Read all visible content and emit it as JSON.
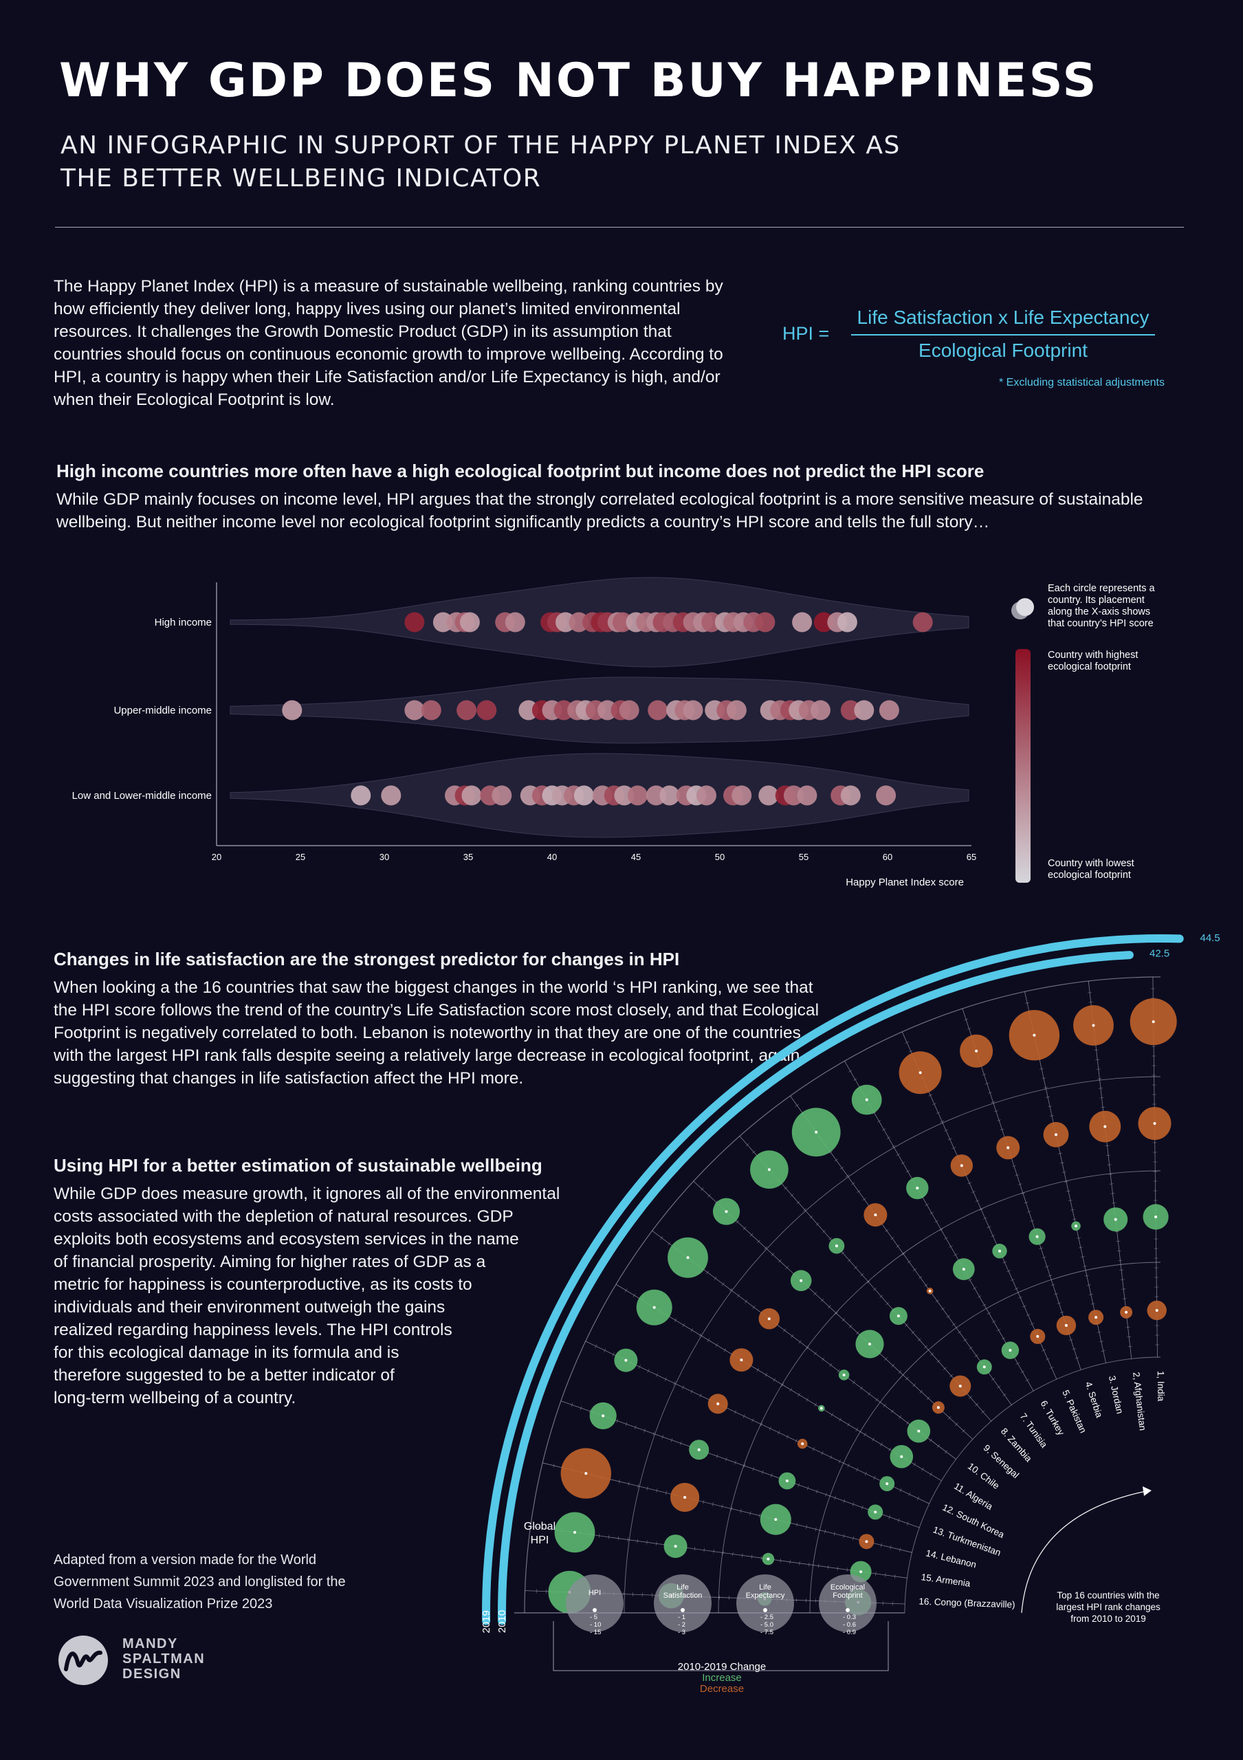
{
  "header": {
    "title": "WHY GDP DOES NOT BUY HAPPINESS",
    "subtitle": "AN INFOGRAPHIC IN SUPPORT OF THE HAPPY PLANET INDEX AS THE BETTER WELLBEING INDICATOR"
  },
  "intro": {
    "text": "The Happy Planet Index (HPI) is a measure of sustainable wellbeing, ranking countries by how efficiently they deliver long, happy lives using our planet’s limited environmental resources. It challenges the Growth Domestic Product (GDP) in its assumption that countries should focus on continuous economic growth to improve wellbeing. According to HPI, a country is happy when their Life Satisfaction and/or Life Expectancy is high, and/or when their Ecological Footprint is low."
  },
  "formula": {
    "lhs": "HPI =",
    "numerator": "Life Satisfaction x Life Expectancy",
    "denominator": "Ecological Footprint",
    "note": "* Excluding statistical adjustments"
  },
  "section1": {
    "heading": "High income countries more often have a high ecological footprint but income does not predict the HPI score",
    "body": "While GDP mainly focuses on income level, HPI argues that the strongly correlated ecological footprint is a more sensitive measure of sustainable wellbeing. But neither income level nor ecological footprint significantly predicts a country’s HPI score and tells the full story…"
  },
  "section2": {
    "heading": "Changes in life satisfaction are the strongest predictor for changes in HPI",
    "body": "When looking a the 16 countries that saw the biggest changes in the world ‘s HPI ranking, we see that the HPI score follows the trend of the country’s Life Satisfaction score most closely, and that Ecological Footprint is negatively correlated to both. Lebanon is noteworthy in that they are one of the countries with the largest HPI rank falls despite seeing a relatively large decrease in ecological footprint, again suggesting that changes in life satisfaction affect the HPI more."
  },
  "section3": {
    "heading": "Using HPI for a better estimation of sustainable wellbeing",
    "lines": [
      "While GDP does measure growth, it ignores all of the environmental",
      "costs associated with the depletion of natural resources. GDP",
      "exploits both ecosystems and ecosystem services in the name",
      "of financial prosperity. Aiming for higher rates of GDP as a",
      "metric for happiness is counterproductive, as its costs to",
      "individuals and their environment outweigh the gains",
      "realized regarding happiness levels. The HPI controls",
      "for this ecological damage in its formula and is",
      "therefore suggested to be a better indicator of",
      "long-term wellbeing of a country."
    ]
  },
  "credit": {
    "text": "Adapted from a version made for the World Government Summit 2023 and longlisted for the World Data Visualization Prize 2023",
    "logo_lines": [
      "MANDY",
      "SPALTMAN",
      "DESIGN"
    ]
  },
  "colors": {
    "background": "#0d0c1f",
    "accent": "#56c8e8",
    "increase": "#5cb870",
    "decrease": "#c0622a",
    "footprint_high": "#8c1024",
    "footprint_low": "#d6d6dc"
  },
  "chart_data": [
    {
      "type": "scatter",
      "subtype": "beeswarm-violin",
      "xlabel": "Happy Planet Index score",
      "xlim": [
        20,
        65
      ],
      "xticks": [
        20,
        25,
        30,
        35,
        40,
        45,
        50,
        55,
        60,
        65
      ],
      "color_encoding": "ecological footprint (dark red = highest, light grey = lowest)",
      "legend": {
        "circle_note": "Each circle represents a country. Its placement along the X-axis shows that country’s HPI score",
        "high_label": "Country with highest ecological footprint",
        "low_label": "Country with lowest ecological footprint"
      },
      "series": [
        {
          "name": "High income",
          "points": [
            {
              "hpi": 31.8,
              "fp": 0.9
            },
            {
              "hpi": 33.5,
              "fp": 0.3
            },
            {
              "hpi": 34.3,
              "fp": 0.4
            },
            {
              "hpi": 34.8,
              "fp": 0.6
            },
            {
              "hpi": 35.1,
              "fp": 0.3
            },
            {
              "hpi": 37.2,
              "fp": 0.6
            },
            {
              "hpi": 37.8,
              "fp": 0.4
            },
            {
              "hpi": 39.9,
              "fp": 0.9
            },
            {
              "hpi": 40.3,
              "fp": 0.8
            },
            {
              "hpi": 40.8,
              "fp": 0.3
            },
            {
              "hpi": 41.6,
              "fp": 0.5
            },
            {
              "hpi": 42.4,
              "fp": 0.7
            },
            {
              "hpi": 42.9,
              "fp": 0.9
            },
            {
              "hpi": 43.3,
              "fp": 0.8
            },
            {
              "hpi": 43.9,
              "fp": 0.4
            },
            {
              "hpi": 44.2,
              "fp": 0.6
            },
            {
              "hpi": 45.0,
              "fp": 0.3
            },
            {
              "hpi": 45.6,
              "fp": 0.5
            },
            {
              "hpi": 46.2,
              "fp": 0.4
            },
            {
              "hpi": 46.6,
              "fp": 0.7
            },
            {
              "hpi": 47.2,
              "fp": 0.6
            },
            {
              "hpi": 47.8,
              "fp": 0.8
            },
            {
              "hpi": 48.4,
              "fp": 0.5
            },
            {
              "hpi": 49.0,
              "fp": 0.4
            },
            {
              "hpi": 49.5,
              "fp": 0.6
            },
            {
              "hpi": 50.3,
              "fp": 0.3
            },
            {
              "hpi": 50.8,
              "fp": 0.5
            },
            {
              "hpi": 51.4,
              "fp": 0.4
            },
            {
              "hpi": 52.0,
              "fp": 0.6
            },
            {
              "hpi": 52.7,
              "fp": 0.7
            },
            {
              "hpi": 54.9,
              "fp": 0.3
            },
            {
              "hpi": 56.2,
              "fp": 0.95
            },
            {
              "hpi": 57.0,
              "fp": 0.4
            },
            {
              "hpi": 57.6,
              "fp": 0.2
            },
            {
              "hpi": 62.1,
              "fp": 0.7
            }
          ]
        },
        {
          "name": "Upper-middle income",
          "points": [
            {
              "hpi": 24.5,
              "fp": 0.3
            },
            {
              "hpi": 31.8,
              "fp": 0.4
            },
            {
              "hpi": 32.8,
              "fp": 0.6
            },
            {
              "hpi": 34.9,
              "fp": 0.7
            },
            {
              "hpi": 36.1,
              "fp": 0.8
            },
            {
              "hpi": 38.6,
              "fp": 0.3
            },
            {
              "hpi": 39.4,
              "fp": 0.9
            },
            {
              "hpi": 40.0,
              "fp": 0.4
            },
            {
              "hpi": 40.7,
              "fp": 0.7
            },
            {
              "hpi": 41.5,
              "fp": 0.5
            },
            {
              "hpi": 42.0,
              "fp": 0.3
            },
            {
              "hpi": 42.6,
              "fp": 0.6
            },
            {
              "hpi": 43.3,
              "fp": 0.4
            },
            {
              "hpi": 44.1,
              "fp": 0.7
            },
            {
              "hpi": 44.6,
              "fp": 0.5
            },
            {
              "hpi": 46.3,
              "fp": 0.6
            },
            {
              "hpi": 47.4,
              "fp": 0.3
            },
            {
              "hpi": 47.9,
              "fp": 0.5
            },
            {
              "hpi": 48.4,
              "fp": 0.4
            },
            {
              "hpi": 49.7,
              "fp": 0.3
            },
            {
              "hpi": 50.4,
              "fp": 0.6
            },
            {
              "hpi": 51.0,
              "fp": 0.4
            },
            {
              "hpi": 53.0,
              "fp": 0.3
            },
            {
              "hpi": 53.6,
              "fp": 0.5
            },
            {
              "hpi": 54.2,
              "fp": 0.7
            },
            {
              "hpi": 54.7,
              "fp": 0.3
            },
            {
              "hpi": 55.3,
              "fp": 0.5
            },
            {
              "hpi": 56.0,
              "fp": 0.4
            },
            {
              "hpi": 57.8,
              "fp": 0.7
            },
            {
              "hpi": 58.6,
              "fp": 0.3
            },
            {
              "hpi": 60.1,
              "fp": 0.4
            }
          ]
        },
        {
          "name": "Low and Lower-middle income",
          "points": [
            {
              "hpi": 28.6,
              "fp": 0.2
            },
            {
              "hpi": 30.4,
              "fp": 0.3
            },
            {
              "hpi": 34.2,
              "fp": 0.4
            },
            {
              "hpi": 34.8,
              "fp": 0.8
            },
            {
              "hpi": 35.2,
              "fp": 0.3
            },
            {
              "hpi": 36.3,
              "fp": 0.6
            },
            {
              "hpi": 37.0,
              "fp": 0.4
            },
            {
              "hpi": 38.7,
              "fp": 0.3
            },
            {
              "hpi": 39.4,
              "fp": 0.6
            },
            {
              "hpi": 40.0,
              "fp": 0.2
            },
            {
              "hpi": 40.6,
              "fp": 0.3
            },
            {
              "hpi": 41.3,
              "fp": 0.5
            },
            {
              "hpi": 41.9,
              "fp": 0.2
            },
            {
              "hpi": 43.0,
              "fp": 0.4
            },
            {
              "hpi": 43.7,
              "fp": 0.7
            },
            {
              "hpi": 44.3,
              "fp": 0.3
            },
            {
              "hpi": 45.1,
              "fp": 0.5
            },
            {
              "hpi": 46.2,
              "fp": 0.4
            },
            {
              "hpi": 47.0,
              "fp": 0.3
            },
            {
              "hpi": 48.0,
              "fp": 0.5
            },
            {
              "hpi": 48.6,
              "fp": 0.2
            },
            {
              "hpi": 49.2,
              "fp": 0.4
            },
            {
              "hpi": 50.8,
              "fp": 0.6
            },
            {
              "hpi": 51.3,
              "fp": 0.4
            },
            {
              "hpi": 52.9,
              "fp": 0.3
            },
            {
              "hpi": 53.9,
              "fp": 0.9
            },
            {
              "hpi": 54.4,
              "fp": 0.5
            },
            {
              "hpi": 55.2,
              "fp": 0.4
            },
            {
              "hpi": 57.2,
              "fp": 0.6
            },
            {
              "hpi": 57.8,
              "fp": 0.3
            },
            {
              "hpi": 59.9,
              "fp": 0.4
            }
          ]
        }
      ]
    },
    {
      "type": "radial",
      "title": "Top 16 countries with the largest HPI rank changes from 2010 to 2019",
      "global_hpi": {
        "label": "Global HPI",
        "years": [
          "2010",
          "2019"
        ],
        "values": [
          42.5,
          44.5
        ]
      },
      "ring_metrics": [
        "HPI",
        "Life Satisfaction",
        "Life Expectancy",
        "Ecological Footprint"
      ],
      "categories": [
        "1, India",
        "2, Afghanistan",
        "3. Jordan",
        "4. Serbia",
        "5. Pakistan",
        "6. Turkey",
        "7. Tunisia",
        "8. Zambia",
        "9. Senegal",
        "10. Chile",
        "11. Algeria",
        "12. South Korea",
        "13. Turkmenistan",
        "14. Lebanon",
        "15. Armenia",
        "16. Congo (Brazzaville)"
      ],
      "series": [
        {
          "name": "HPI change",
          "values": [
            -12,
            -9,
            -14,
            -6,
            -10,
            5,
            13,
            8,
            4,
            9,
            7,
            3,
            4,
            -14,
            9,
            10
          ]
        },
        {
          "name": "Life Satisfaction change",
          "values": [
            -2.2,
            -2.0,
            -1.3,
            -1.1,
            -1.0,
            1.0,
            -1.1,
            0.5,
            0.9,
            -0.9,
            -1.1,
            -0.8,
            0.8,
            -1.7,
            1.1,
            1.3
          ]
        },
        {
          "name": "Life Expectancy change",
          "values": [
            4.5,
            4.0,
            0.6,
            1.9,
            1.5,
            3.3,
            -0.3,
            2.2,
            5.5,
            0.8,
            0.3,
            -0.7,
            2.0,
            6.6,
            1.0,
            1.3
          ]
        },
        {
          "name": "Ecological Footprint change",
          "values": [
            -0.5,
            -0.2,
            -0.3,
            -0.5,
            -0.3,
            0.4,
            0.3,
            -0.6,
            -0.2,
            0.7,
            0.7,
            0.3,
            0.3,
            -0.3,
            0.6,
            0.9
          ]
        }
      ],
      "legend": {
        "title": "2010-2019 Change",
        "increase": "Increase",
        "decrease": "Decrease",
        "scales": [
          {
            "label": "HPI",
            "ticks": [
              "5",
              "10",
              "15"
            ]
          },
          {
            "label": "Life Satisfaction",
            "ticks": [
              "1",
              "2",
              "3"
            ]
          },
          {
            "label": "Life Expectancy",
            "ticks": [
              "2.5",
              "5.0",
              "7.5"
            ]
          },
          {
            "label": "Ecological Footprint",
            "ticks": [
              "0.3",
              "0.6",
              "0.9"
            ]
          }
        ]
      }
    }
  ]
}
